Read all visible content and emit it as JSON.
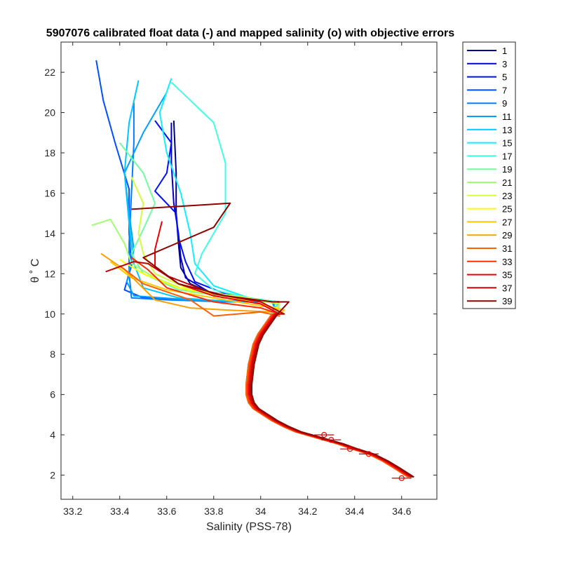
{
  "chart_data": {
    "type": "line",
    "title": "5907076 calibrated float data (-) and mapped salinity (o) with objective errors",
    "xlabel": "Salinity (PSS-78)",
    "ylabel": "θ ˚ C",
    "xlim": [
      33.15,
      34.75
    ],
    "ylim": [
      0.8,
      23.5
    ],
    "xticks": [
      "33.2",
      "33.4",
      "33.6",
      "33.8",
      "34",
      "34.2",
      "34.4",
      "34.6"
    ],
    "yticks": [
      "2",
      "4",
      "6",
      "8",
      "10",
      "12",
      "14",
      "16",
      "18",
      "20",
      "22"
    ],
    "legend": {
      "placement": "outside-right",
      "entries": [
        "1",
        "3",
        "5",
        "7",
        "9",
        "11",
        "13",
        "15",
        "17",
        "19",
        "21",
        "23",
        "25",
        "27",
        "29",
        "31",
        "33",
        "35",
        "37",
        "39"
      ],
      "colors": [
        "#00008f",
        "#0000c8",
        "#0010ff",
        "#0050ff",
        "#0080ff",
        "#00a0ff",
        "#00c8ff",
        "#10f0ff",
        "#40ffe0",
        "#70ffa0",
        "#a0ff70",
        "#d0ff40",
        "#ffff00",
        "#ffc800",
        "#ffa000",
        "#ff6000",
        "#ff3000",
        "#f00000",
        "#c00000",
        "#900000"
      ]
    },
    "common_deep_profile": [
      [
        34.08,
        10.6
      ],
      [
        34.06,
        10.0
      ],
      [
        34.03,
        9.5
      ],
      [
        34.0,
        9.0
      ],
      [
        33.98,
        8.5
      ],
      [
        33.97,
        8.0
      ],
      [
        33.96,
        7.5
      ],
      [
        33.955,
        7.0
      ],
      [
        33.95,
        6.5
      ],
      [
        33.95,
        6.0
      ],
      [
        33.96,
        5.6
      ],
      [
        33.98,
        5.3
      ],
      [
        34.02,
        5.0
      ],
      [
        34.06,
        4.7
      ],
      [
        34.11,
        4.4
      ],
      [
        34.16,
        4.15
      ],
      [
        34.22,
        3.95
      ],
      [
        34.28,
        3.75
      ],
      [
        34.34,
        3.55
      ],
      [
        34.4,
        3.3
      ],
      [
        34.47,
        3.05
      ],
      [
        34.53,
        2.7
      ],
      [
        34.58,
        2.35
      ],
      [
        34.64,
        1.9
      ]
    ],
    "series": [
      {
        "name": "1",
        "color": "#00008f",
        "upper": [
          [
            33.63,
            19.6
          ],
          [
            33.64,
            17.0
          ],
          [
            33.64,
            15.0
          ],
          [
            33.65,
            13.5
          ],
          [
            33.66,
            12.3
          ],
          [
            33.7,
            11.5
          ],
          [
            33.8,
            11.0
          ],
          [
            33.95,
            10.7
          ],
          [
            34.08,
            10.6
          ]
        ]
      },
      {
        "name": "3",
        "color": "#0000c8",
        "upper": [
          [
            33.62,
            19.5
          ],
          [
            33.62,
            17.5
          ],
          [
            33.63,
            15.5
          ],
          [
            33.65,
            14.0
          ],
          [
            33.66,
            12.8
          ],
          [
            33.68,
            11.8
          ],
          [
            33.78,
            11.1
          ],
          [
            33.95,
            10.75
          ],
          [
            34.08,
            10.6
          ]
        ]
      },
      {
        "name": "5",
        "color": "#0010ff",
        "upper": [
          [
            33.55,
            19.6
          ],
          [
            33.62,
            18.5
          ],
          [
            33.6,
            17.0
          ],
          [
            33.55,
            16.1
          ],
          [
            33.64,
            15.0
          ],
          [
            33.65,
            13.8
          ],
          [
            33.68,
            12.6
          ],
          [
            33.72,
            11.6
          ],
          [
            33.85,
            11.0
          ],
          [
            34.0,
            10.7
          ],
          [
            34.08,
            10.6
          ]
        ]
      },
      {
        "name": "7",
        "color": "#0050ff",
        "upper": [
          [
            33.3,
            22.6
          ],
          [
            33.33,
            20.6
          ],
          [
            33.38,
            18.5
          ],
          [
            33.44,
            16.2
          ],
          [
            33.44,
            14.0
          ],
          [
            33.45,
            12.4
          ],
          [
            33.42,
            11.2
          ],
          [
            33.5,
            10.8
          ],
          [
            33.7,
            10.7
          ],
          [
            33.9,
            10.6
          ],
          [
            34.05,
            10.6
          ]
        ]
      },
      {
        "name": "9",
        "color": "#0080ff",
        "upper": [
          [
            33.46,
            20.5
          ],
          [
            33.46,
            18.5
          ],
          [
            33.45,
            16.0
          ],
          [
            33.44,
            13.5
          ],
          [
            33.44,
            12.0
          ],
          [
            33.45,
            10.8
          ],
          [
            33.6,
            10.7
          ],
          [
            33.85,
            10.6
          ],
          [
            34.05,
            10.6
          ]
        ]
      },
      {
        "name": "11",
        "color": "#00a0ff",
        "upper": [
          [
            33.6,
            21.0
          ],
          [
            33.5,
            19.0
          ],
          [
            33.42,
            17.0
          ],
          [
            33.44,
            15.0
          ],
          [
            33.46,
            13.2
          ],
          [
            33.43,
            11.6
          ],
          [
            33.46,
            10.9
          ],
          [
            33.7,
            10.7
          ],
          [
            34.06,
            10.6
          ]
        ]
      },
      {
        "name": "13",
        "color": "#00c8ff",
        "upper": [
          [
            33.48,
            21.6
          ],
          [
            33.44,
            19.5
          ],
          [
            33.42,
            17.0
          ],
          [
            33.44,
            14.5
          ],
          [
            33.46,
            12.5
          ],
          [
            33.5,
            11.3
          ],
          [
            33.65,
            10.8
          ],
          [
            33.9,
            10.6
          ],
          [
            34.06,
            10.6
          ]
        ]
      },
      {
        "name": "15",
        "color": "#10f0ff",
        "upper": [
          [
            33.62,
            21.7
          ],
          [
            33.57,
            20.0
          ],
          [
            33.6,
            18.0
          ],
          [
            33.66,
            16.0
          ],
          [
            33.7,
            14.0
          ],
          [
            33.72,
            12.5
          ],
          [
            33.8,
            11.4
          ],
          [
            33.95,
            10.8
          ],
          [
            34.07,
            10.6
          ]
        ]
      },
      {
        "name": "17",
        "color": "#40ffe0",
        "upper": [
          [
            33.62,
            21.5
          ],
          [
            33.8,
            19.5
          ],
          [
            33.85,
            17.5
          ],
          [
            33.85,
            15.0
          ],
          [
            33.75,
            13.0
          ],
          [
            33.72,
            12.0
          ],
          [
            33.8,
            11.2
          ],
          [
            33.95,
            10.8
          ],
          [
            34.07,
            10.6
          ]
        ]
      },
      {
        "name": "19",
        "color": "#70ffa0",
        "upper": [
          [
            33.4,
            18.5
          ],
          [
            33.5,
            17.0
          ],
          [
            33.55,
            15.5
          ],
          [
            33.5,
            14.2
          ],
          [
            33.45,
            13.0
          ],
          [
            33.5,
            12.0
          ],
          [
            33.65,
            11.2
          ],
          [
            33.9,
            10.8
          ],
          [
            34.08,
            10.6
          ]
        ]
      },
      {
        "name": "21",
        "color": "#a0ff70",
        "upper": [
          [
            33.28,
            14.4
          ],
          [
            33.36,
            14.7
          ],
          [
            33.42,
            13.5
          ],
          [
            33.45,
            12.5
          ],
          [
            33.55,
            11.8
          ],
          [
            33.7,
            11.1
          ],
          [
            33.9,
            10.8
          ],
          [
            34.08,
            10.5
          ]
        ]
      },
      {
        "name": "23",
        "color": "#d0ff40",
        "upper": [
          [
            33.45,
            16.8
          ],
          [
            33.5,
            15.5
          ],
          [
            33.48,
            14.0
          ],
          [
            33.5,
            13.0
          ],
          [
            33.55,
            12.0
          ],
          [
            33.7,
            11.2
          ],
          [
            33.95,
            10.8
          ],
          [
            34.08,
            10.5
          ]
        ]
      },
      {
        "name": "25",
        "color": "#ffff00",
        "upper": [
          [
            33.4,
            12.7
          ],
          [
            33.5,
            12.0
          ],
          [
            33.65,
            11.3
          ],
          [
            33.85,
            10.9
          ],
          [
            34.1,
            10.2
          ],
          [
            34.08,
            10.0
          ]
        ]
      },
      {
        "name": "27",
        "color": "#ffc800",
        "upper": [
          [
            33.36,
            12.6
          ],
          [
            33.45,
            11.8
          ],
          [
            33.6,
            11.2
          ],
          [
            33.8,
            10.8
          ],
          [
            34.1,
            10.2
          ],
          [
            34.08,
            10.0
          ]
        ]
      },
      {
        "name": "29",
        "color": "#ffa000",
        "upper": [
          [
            33.32,
            13.0
          ],
          [
            33.42,
            12.2
          ],
          [
            33.55,
            10.7
          ],
          [
            33.7,
            10.3
          ],
          [
            33.85,
            10.2
          ],
          [
            34.05,
            10.1
          ],
          [
            34.08,
            10.0
          ]
        ]
      },
      {
        "name": "31",
        "color": "#ff6000",
        "upper": [
          [
            33.4,
            12.4
          ],
          [
            33.5,
            11.5
          ],
          [
            33.7,
            10.7
          ],
          [
            33.8,
            9.9
          ],
          [
            34.0,
            10.1
          ],
          [
            34.08,
            9.9
          ]
        ]
      },
      {
        "name": "33",
        "color": "#ff3000",
        "upper": [
          [
            33.45,
            12.8
          ],
          [
            33.52,
            12.2
          ],
          [
            33.6,
            11.3
          ],
          [
            33.8,
            10.6
          ],
          [
            34.0,
            10.3
          ],
          [
            34.08,
            10.0
          ]
        ]
      },
      {
        "name": "35",
        "color": "#f00000",
        "upper": [
          [
            33.58,
            14.6
          ],
          [
            33.55,
            13.2
          ],
          [
            33.55,
            12.3
          ],
          [
            33.65,
            11.5
          ],
          [
            33.8,
            10.9
          ],
          [
            34.0,
            10.5
          ],
          [
            34.08,
            10.0
          ]
        ]
      },
      {
        "name": "37",
        "color": "#c00000",
        "upper": [
          [
            33.34,
            12.1
          ],
          [
            33.46,
            12.6
          ],
          [
            33.52,
            12.5
          ],
          [
            33.6,
            11.9
          ],
          [
            33.8,
            11.0
          ],
          [
            34.0,
            10.6
          ],
          [
            34.1,
            10.0
          ]
        ]
      },
      {
        "name": "39",
        "color": "#900000",
        "upper": [
          [
            33.45,
            15.2
          ],
          [
            33.87,
            15.5
          ],
          [
            33.8,
            14.3
          ],
          [
            33.5,
            12.8
          ],
          [
            33.65,
            11.5
          ],
          [
            33.85,
            10.9
          ],
          [
            34.05,
            10.6
          ],
          [
            34.12,
            10.6
          ]
        ]
      }
    ],
    "mapped_points": [
      [
        34.27,
        4.0
      ],
      [
        34.3,
        3.75
      ],
      [
        34.38,
        3.3
      ],
      [
        34.46,
        3.05
      ],
      [
        34.6,
        1.85
      ]
    ]
  }
}
